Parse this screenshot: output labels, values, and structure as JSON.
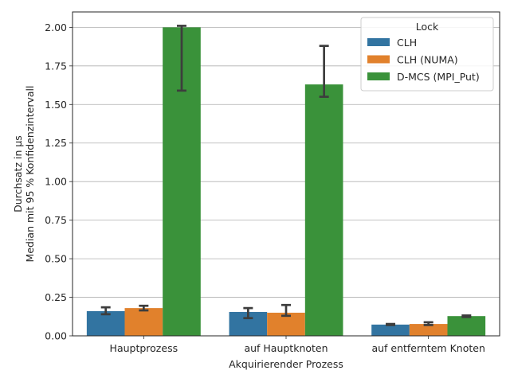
{
  "chart_data": {
    "type": "bar",
    "categories": [
      "Hauptprozess",
      "auf Hauptknoten",
      "auf entferntem Knoten"
    ],
    "series": [
      {
        "name": "CLH",
        "color": "#3274a1",
        "values": [
          0.16,
          0.155,
          0.073
        ],
        "ci": [
          [
            0.14,
            0.185
          ],
          [
            0.115,
            0.18
          ],
          [
            0.07,
            0.077
          ]
        ]
      },
      {
        "name": "CLH (NUMA)",
        "color": "#e1812c",
        "values": [
          0.18,
          0.15,
          0.077
        ],
        "ci": [
          [
            0.165,
            0.195
          ],
          [
            0.13,
            0.2
          ],
          [
            0.07,
            0.088
          ]
        ]
      },
      {
        "name": "D-MCS (MPI_Put)",
        "color": "#3a923a",
        "values": [
          2.0,
          1.63,
          0.128
        ],
        "ci": [
          [
            1.59,
            2.01
          ],
          [
            1.55,
            1.88
          ],
          [
            0.122,
            0.132
          ]
        ]
      }
    ],
    "xlabel": "Akquirierender Prozess",
    "ylabel_lines": [
      "Durchsatz in µs",
      "Median mit 95 % Konfidenzintervall"
    ],
    "ylim": [
      0,
      2.1
    ],
    "yticks": [
      0.0,
      0.25,
      0.5,
      0.75,
      1.0,
      1.25,
      1.5,
      1.75,
      2.0
    ],
    "ytick_labels": [
      "0.00",
      "0.25",
      "0.50",
      "0.75",
      "1.00",
      "1.25",
      "1.50",
      "1.75",
      "2.00"
    ],
    "grid": "y",
    "legend_title": "Lock",
    "legend_position": "top-right"
  }
}
